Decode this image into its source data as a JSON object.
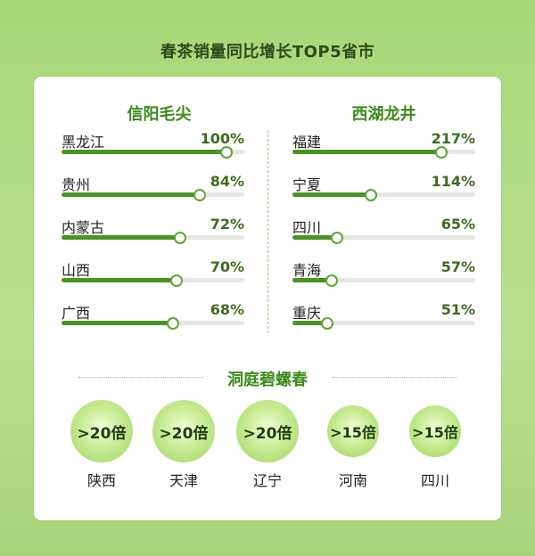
{
  "title": "春茶销量同比增长TOP5省市",
  "chart_data": [
    {
      "type": "bar",
      "title": "信阳毛尖",
      "categories": [
        "黑龙江",
        "贵州",
        "内蒙古",
        "山西",
        "广西"
      ],
      "values": [
        100,
        84,
        72,
        70,
        68
      ],
      "labels": [
        "100%",
        "84%",
        "72%",
        "70%",
        "68%"
      ],
      "unit": "%",
      "xlim": [
        0,
        100
      ]
    },
    {
      "type": "bar",
      "title": "西湖龙井",
      "categories": [
        "福建",
        "宁夏",
        "四川",
        "青海",
        "重庆"
      ],
      "values": [
        217,
        114,
        65,
        57,
        51
      ],
      "labels": [
        "217%",
        "114%",
        "65%",
        "57%",
        "51%"
      ],
      "unit": "%",
      "xlim": [
        0,
        240
      ]
    },
    {
      "type": "bubble",
      "title": "洞庭碧螺春",
      "categories": [
        "陕西",
        "天津",
        "辽宁",
        "河南",
        "四川"
      ],
      "values": [
        20,
        20,
        20,
        15,
        15
      ],
      "labels": [
        ">20倍",
        ">20倍",
        ">20倍",
        ">15倍",
        ">15倍"
      ]
    }
  ],
  "colors": {
    "accent": "#3c8a1a",
    "bar": "#4a9424",
    "track": "#e7e7e1"
  }
}
